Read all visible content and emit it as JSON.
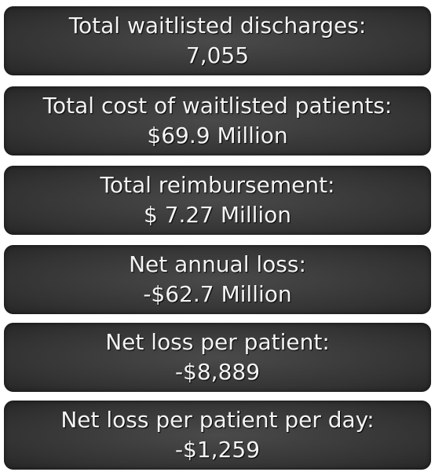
{
  "items": [
    {
      "label": "Total waitlisted discharges:",
      "value": "7,055"
    },
    {
      "label": "Total cost of waitlisted patients:",
      "value": "$69.9 Million"
    },
    {
      "label": "Total reimbursement:",
      "value": "$ 7.27 Million"
    },
    {
      "label": "Net annual loss:",
      "value": "-$62.7 Million"
    },
    {
      "label": "Net loss per patient:",
      "value": "-$8,889"
    },
    {
      "label": "Net loss per patient per day:",
      "value": "-$1,259"
    }
  ]
}
